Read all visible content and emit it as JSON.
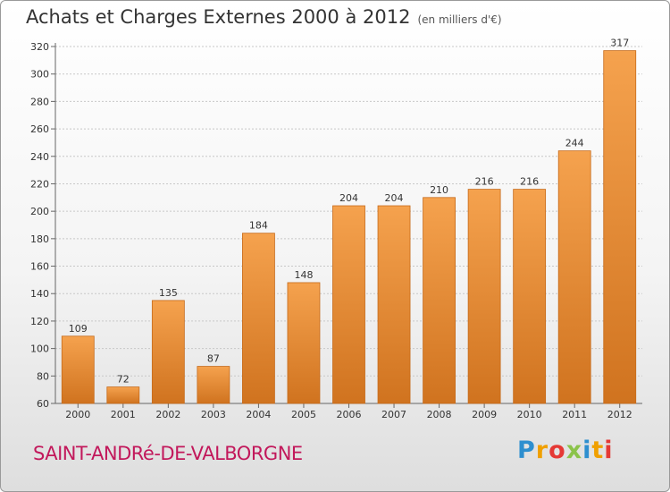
{
  "title": "Achats et Charges Externes 2000 à 2012",
  "subtitle": "(en milliers d'€)",
  "commune": "SAINT-ANDRé-DE-VALBORGNE",
  "logo": {
    "text": "Proxiti",
    "letters": [
      {
        "char": "P",
        "color": "#2e8fcf"
      },
      {
        "char": "r",
        "color": "#f0a000"
      },
      {
        "char": "o",
        "color": "#e53935"
      },
      {
        "char": "x",
        "color": "#8bc34a"
      },
      {
        "char": "i",
        "color": "#2e8fcf"
      },
      {
        "char": "t",
        "color": "#f0a000"
      },
      {
        "char": "i",
        "color": "#e53935"
      }
    ]
  },
  "colors": {
    "bar_top": "#f5a24e",
    "bar_bottom": "#d0731f",
    "bar_edge": "#c66a1a",
    "grid": "#c8c8c8"
  },
  "chart_data": {
    "type": "bar",
    "categories": [
      "2000",
      "2001",
      "2002",
      "2003",
      "2004",
      "2005",
      "2006",
      "2007",
      "2008",
      "2009",
      "2010",
      "2011",
      "2012"
    ],
    "values": [
      109,
      72,
      135,
      87,
      184,
      148,
      204,
      204,
      210,
      216,
      216,
      244,
      317
    ],
    "title": "Achats et Charges Externes 2000 à 2012",
    "ylim": [
      60,
      320
    ],
    "yticks": [
      60,
      80,
      100,
      120,
      140,
      160,
      180,
      200,
      220,
      240,
      260,
      280,
      300,
      320
    ],
    "grid": true
  }
}
